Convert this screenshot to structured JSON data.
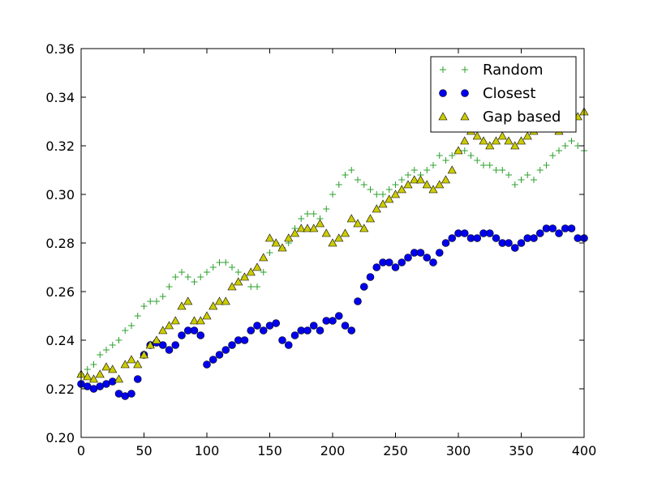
{
  "chart_data": {
    "type": "scatter",
    "title": "",
    "xlabel": "",
    "ylabel": "",
    "xlim": [
      0,
      400
    ],
    "ylim": [
      0.2,
      0.36
    ],
    "grid": false,
    "legend_position": "top-right",
    "x_ticks": [
      {
        "value": 0,
        "label": "0"
      },
      {
        "value": 50,
        "label": "50"
      },
      {
        "value": 100,
        "label": "100"
      },
      {
        "value": 150,
        "label": "150"
      },
      {
        "value": 200,
        "label": "200"
      },
      {
        "value": 250,
        "label": "250"
      },
      {
        "value": 300,
        "label": "300"
      },
      {
        "value": 350,
        "label": "350"
      },
      {
        "value": 400,
        "label": "400"
      }
    ],
    "y_ticks": [
      {
        "value": 0.2,
        "label": "0.20"
      },
      {
        "value": 0.22,
        "label": "0.22"
      },
      {
        "value": 0.24,
        "label": "0.24"
      },
      {
        "value": 0.26,
        "label": "0.26"
      },
      {
        "value": 0.28,
        "label": "0.28"
      },
      {
        "value": 0.3,
        "label": "0.30"
      },
      {
        "value": 0.32,
        "label": "0.32"
      },
      {
        "value": 0.34,
        "label": "0.34"
      },
      {
        "value": 0.36,
        "label": "0.36"
      }
    ],
    "series": [
      {
        "name": "Random",
        "marker": "plus",
        "color": "#2ca02c",
        "x": [
          0,
          5,
          10,
          15,
          20,
          25,
          30,
          35,
          40,
          45,
          50,
          55,
          60,
          65,
          70,
          75,
          80,
          85,
          90,
          95,
          100,
          105,
          110,
          115,
          120,
          125,
          130,
          135,
          140,
          145,
          150,
          155,
          160,
          165,
          170,
          175,
          180,
          185,
          190,
          195,
          200,
          205,
          210,
          215,
          220,
          225,
          230,
          235,
          240,
          245,
          250,
          255,
          260,
          265,
          270,
          275,
          280,
          285,
          290,
          295,
          300,
          305,
          310,
          315,
          320,
          325,
          330,
          335,
          340,
          345,
          350,
          355,
          360,
          365,
          370,
          375,
          380,
          385,
          390,
          395,
          400
        ],
        "y": [
          0.226,
          0.228,
          0.23,
          0.234,
          0.236,
          0.238,
          0.24,
          0.244,
          0.246,
          0.25,
          0.254,
          0.256,
          0.256,
          0.258,
          0.262,
          0.266,
          0.268,
          0.266,
          0.264,
          0.266,
          0.268,
          0.27,
          0.272,
          0.272,
          0.27,
          0.268,
          0.266,
          0.262,
          0.262,
          0.268,
          0.276,
          0.28,
          0.278,
          0.28,
          0.286,
          0.29,
          0.292,
          0.292,
          0.29,
          0.294,
          0.3,
          0.304,
          0.308,
          0.31,
          0.306,
          0.304,
          0.302,
          0.3,
          0.3,
          0.302,
          0.304,
          0.306,
          0.308,
          0.31,
          0.308,
          0.31,
          0.312,
          0.316,
          0.314,
          0.316,
          0.318,
          0.318,
          0.316,
          0.314,
          0.312,
          0.312,
          0.31,
          0.31,
          0.308,
          0.304,
          0.306,
          0.308,
          0.306,
          0.31,
          0.312,
          0.316,
          0.318,
          0.32,
          0.322,
          0.32,
          0.318
        ]
      },
      {
        "name": "Closest",
        "marker": "circle",
        "color": "#0000ee",
        "x": [
          0,
          5,
          10,
          15,
          20,
          25,
          30,
          35,
          40,
          45,
          50,
          55,
          60,
          65,
          70,
          75,
          80,
          85,
          90,
          95,
          100,
          105,
          110,
          115,
          120,
          125,
          130,
          135,
          140,
          145,
          150,
          155,
          160,
          165,
          170,
          175,
          180,
          185,
          190,
          195,
          200,
          205,
          210,
          215,
          220,
          225,
          230,
          235,
          240,
          245,
          250,
          255,
          260,
          265,
          270,
          275,
          280,
          285,
          290,
          295,
          300,
          305,
          310,
          315,
          320,
          325,
          330,
          335,
          340,
          345,
          350,
          355,
          360,
          365,
          370,
          375,
          380,
          385,
          390,
          395,
          400
        ],
        "y": [
          0.222,
          0.221,
          0.22,
          0.221,
          0.222,
          0.223,
          0.218,
          0.217,
          0.218,
          0.224,
          0.234,
          0.238,
          0.239,
          0.238,
          0.236,
          0.238,
          0.242,
          0.244,
          0.244,
          0.242,
          0.23,
          0.232,
          0.234,
          0.236,
          0.238,
          0.24,
          0.24,
          0.244,
          0.246,
          0.244,
          0.246,
          0.247,
          0.24,
          0.238,
          0.242,
          0.244,
          0.244,
          0.246,
          0.244,
          0.248,
          0.248,
          0.25,
          0.246,
          0.244,
          0.256,
          0.262,
          0.266,
          0.27,
          0.272,
          0.272,
          0.27,
          0.272,
          0.274,
          0.276,
          0.276,
          0.274,
          0.272,
          0.276,
          0.28,
          0.282,
          0.284,
          0.284,
          0.282,
          0.282,
          0.284,
          0.284,
          0.282,
          0.28,
          0.28,
          0.278,
          0.28,
          0.282,
          0.282,
          0.284,
          0.286,
          0.286,
          0.284,
          0.286,
          0.286,
          0.282,
          0.282
        ]
      },
      {
        "name": "Gap based",
        "marker": "triangle",
        "color": "#cccc00",
        "x": [
          0,
          5,
          10,
          15,
          20,
          25,
          30,
          35,
          40,
          45,
          50,
          55,
          60,
          65,
          70,
          75,
          80,
          85,
          90,
          95,
          100,
          105,
          110,
          115,
          120,
          125,
          130,
          135,
          140,
          145,
          150,
          155,
          160,
          165,
          170,
          175,
          180,
          185,
          190,
          195,
          200,
          205,
          210,
          215,
          220,
          225,
          230,
          235,
          240,
          245,
          250,
          255,
          260,
          265,
          270,
          275,
          280,
          285,
          290,
          295,
          300,
          305,
          310,
          315,
          320,
          325,
          330,
          335,
          340,
          345,
          350,
          355,
          360,
          365,
          370,
          375,
          380,
          385,
          390,
          395,
          400
        ],
        "y": [
          0.226,
          0.225,
          0.224,
          0.226,
          0.229,
          0.228,
          0.224,
          0.23,
          0.232,
          0.23,
          0.234,
          0.238,
          0.24,
          0.244,
          0.246,
          0.248,
          0.254,
          0.256,
          0.248,
          0.248,
          0.25,
          0.254,
          0.256,
          0.256,
          0.262,
          0.264,
          0.266,
          0.268,
          0.27,
          0.274,
          0.282,
          0.28,
          0.278,
          0.282,
          0.284,
          0.286,
          0.286,
          0.286,
          0.288,
          0.284,
          0.28,
          0.282,
          0.284,
          0.29,
          0.288,
          0.286,
          0.29,
          0.294,
          0.296,
          0.298,
          0.3,
          0.302,
          0.304,
          0.306,
          0.306,
          0.304,
          0.302,
          0.304,
          0.306,
          0.31,
          0.318,
          0.322,
          0.326,
          0.324,
          0.322,
          0.32,
          0.322,
          0.324,
          0.322,
          0.32,
          0.322,
          0.324,
          0.326,
          0.328,
          0.33,
          0.328,
          0.326,
          0.328,
          0.33,
          0.332,
          0.334
        ]
      }
    ]
  }
}
